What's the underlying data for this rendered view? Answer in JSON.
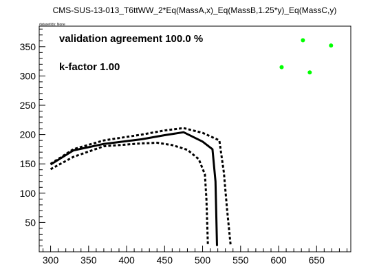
{
  "chart_data": {
    "type": "line",
    "title": "CMS-SUS-13-013_T6ttWW_2*Eq(MassA,x)_Eq(MassB,1.25*y)_Eq(MassC,y)",
    "dataset_note": "datasetIds: None",
    "annotations": [
      "validation agreement 100.0 %",
      "k-factor 1.00"
    ],
    "xlabel": "",
    "ylabel": "",
    "xlim": [
      285,
      695
    ],
    "ylim": [
      0,
      385
    ],
    "x_ticks": [
      300,
      350,
      400,
      450,
      500,
      550,
      600,
      650
    ],
    "y_ticks": [
      50,
      100,
      150,
      200,
      250,
      300,
      350
    ],
    "grid": false,
    "series": [
      {
        "style": "solid",
        "color": "#000000",
        "x": [
          300,
          330,
          370,
          420,
          450,
          475,
          500,
          513,
          517,
          519
        ],
        "y": [
          149,
          173,
          184,
          192,
          199,
          204,
          188,
          175,
          120,
          10
        ]
      },
      {
        "style": "dotted",
        "color": "#000000",
        "x": [
          300,
          330,
          370,
          420,
          450,
          475,
          500,
          522,
          528,
          532,
          537
        ],
        "y": [
          150,
          175,
          190,
          200,
          207,
          211,
          203,
          190,
          135,
          75,
          10
        ]
      },
      {
        "style": "dotted",
        "color": "#000000",
        "x": [
          300,
          330,
          370,
          420,
          440,
          460,
          480,
          495,
          503,
          505,
          507
        ],
        "y": [
          141,
          162,
          180,
          185,
          186,
          182,
          174,
          158,
          132,
          90,
          10
        ]
      },
      {
        "style": "markers",
        "color": "#00ff00",
        "x": [
          604,
          632,
          641,
          669
        ],
        "y": [
          315,
          361,
          306,
          352
        ]
      }
    ]
  }
}
